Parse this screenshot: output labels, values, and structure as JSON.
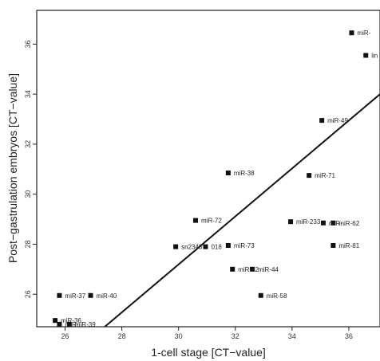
{
  "chart_data": {
    "type": "scatter",
    "title": "",
    "xlabel": "1-cell stage [CT−value]",
    "ylabel": "Post−gastrulation embryos [CT−value]",
    "xlim": [
      25,
      37.1
    ],
    "ylim": [
      24.7,
      37.35
    ],
    "xticks": [
      26,
      28,
      30,
      32,
      34,
      36
    ],
    "yticks": [
      26,
      28,
      30,
      32,
      34,
      36
    ],
    "grid": false,
    "points": [
      {
        "label": "miR-",
        "x": 36.1,
        "y": 36.45
      },
      {
        "label": "lin",
        "x": 36.6,
        "y": 35.55
      },
      {
        "label": "miR-49",
        "x": 35.05,
        "y": 32.95
      },
      {
        "label": "miR-38",
        "x": 31.75,
        "y": 30.85
      },
      {
        "label": "miR-71",
        "x": 34.6,
        "y": 30.75
      },
      {
        "label": "miR-72",
        "x": 30.6,
        "y": 28.95
      },
      {
        "label": "miR-233",
        "x": 33.95,
        "y": 28.9
      },
      {
        "label": "miR-62",
        "x": 35.45,
        "y": 28.85
      },
      {
        "label": "miR-",
        "x": 35.1,
        "y": 28.85
      },
      {
        "label": "sn2343",
        "x": 29.9,
        "y": 27.9
      },
      {
        "label": "018",
        "x": 30.95,
        "y": 27.9
      },
      {
        "label": "miR-73",
        "x": 31.75,
        "y": 27.95
      },
      {
        "label": "miR-81",
        "x": 35.45,
        "y": 27.95
      },
      {
        "label": "miR-44",
        "x": 32.6,
        "y": 27.0
      },
      {
        "label": "miR-42",
        "x": 31.9,
        "y": 27.0
      },
      {
        "label": "miR-58",
        "x": 32.9,
        "y": 25.95
      },
      {
        "label": "miR-37",
        "x": 25.8,
        "y": 25.95
      },
      {
        "label": "miR-40",
        "x": 26.9,
        "y": 25.95
      },
      {
        "label": "miR-36",
        "x": 25.65,
        "y": 24.95
      },
      {
        "label": "miR-39",
        "x": 26.15,
        "y": 24.8
      },
      {
        "label": "miR-",
        "x": 25.8,
        "y": 24.8
      }
    ],
    "fit_line": {
      "x1": 27.4,
      "y1": 24.7,
      "x2": 37.1,
      "y2": 34.0
    }
  }
}
